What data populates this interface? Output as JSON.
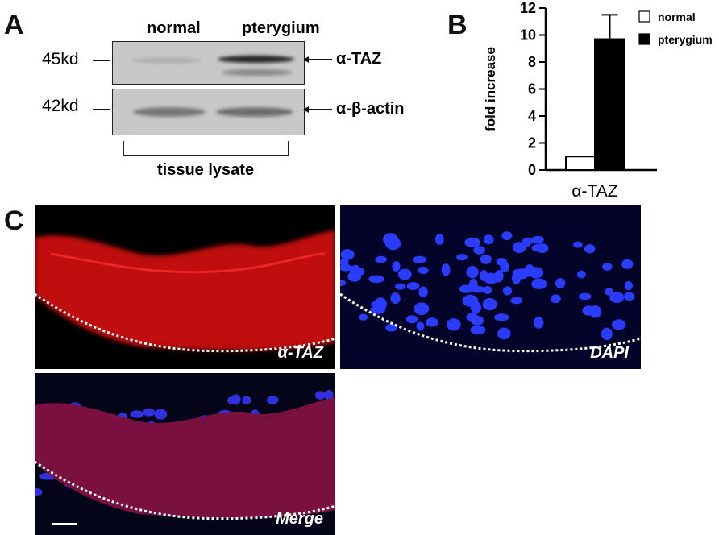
{
  "panels": {
    "a": "A",
    "b": "B",
    "c": "C"
  },
  "blot": {
    "lanes": [
      "normal",
      "pterygium"
    ],
    "markers": [
      "45kd",
      "42kd"
    ],
    "antibodies": [
      "α-TAZ",
      "α-β-actin"
    ],
    "sample": "tissue lysate"
  },
  "chart_data": {
    "type": "bar",
    "categories": [
      "α-TAZ"
    ],
    "series": [
      {
        "name": "normal",
        "values": [
          1.0
        ],
        "color": "#ffffff"
      },
      {
        "name": "pterygium",
        "values": [
          9.7
        ],
        "error": [
          1.8
        ],
        "color": "#000000"
      }
    ],
    "ylabel": "fold increase",
    "ylim": [
      0,
      12
    ],
    "yticks": [
      "0",
      "2",
      "4",
      "6",
      "8",
      "10",
      "12"
    ],
    "legend": "top-right",
    "grid": false
  },
  "micrographs": [
    {
      "label": "α-TAZ",
      "channel": "red"
    },
    {
      "label": "DAPI",
      "channel": "blue"
    },
    {
      "label": "Merge",
      "channel": "merge"
    }
  ]
}
